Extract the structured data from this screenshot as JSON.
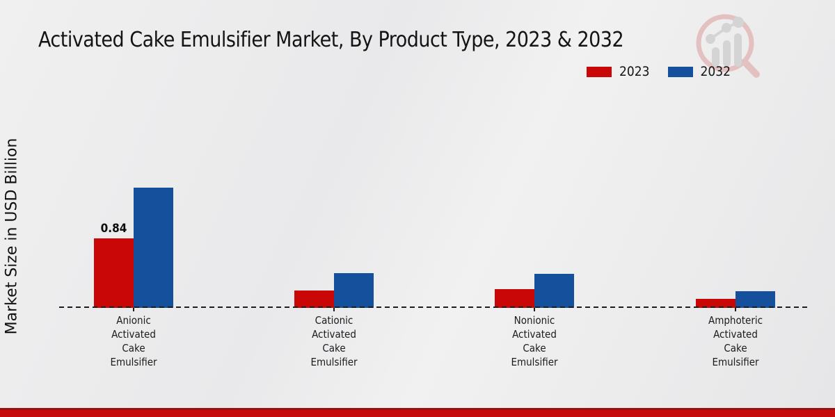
{
  "header": {
    "title": "Activated Cake Emulsifier Market, By Product Type, 2023 & 2032"
  },
  "y_axis": {
    "label": "Market Size in USD Billion"
  },
  "legend": {
    "items": [
      {
        "label": "2023",
        "color": "#c90707"
      },
      {
        "label": "2032",
        "color": "#15509c"
      }
    ]
  },
  "chart_data": {
    "type": "bar",
    "title": "Activated Cake Emulsifier Market, By Product Type, 2023 & 2032",
    "xlabel": "",
    "ylabel": "Market Size in USD Billion",
    "categories": [
      "Anionic\nActivated\nCake\nEmulsifier",
      "Cationic\nActivated\nCake\nEmulsifier",
      "Nonionic\nActivated\nCake\nEmulsifier",
      "Amphoteric\nActivated\nCake\nEmulsifier"
    ],
    "series": [
      {
        "name": "2023",
        "color": "#c90707",
        "values": [
          0.84,
          0.21,
          0.23,
          0.11
        ]
      },
      {
        "name": "2032",
        "color": "#15509c",
        "values": [
          1.45,
          0.42,
          0.41,
          0.2
        ]
      }
    ],
    "annotations": [
      {
        "series": "2023",
        "category_index": 0,
        "text": "0.84"
      }
    ],
    "ylim": [
      0,
      1.6
    ],
    "gridlines": false,
    "y_axis_ticks_visible": false,
    "baseline": "dashed-zero-line",
    "legend_position": "top-right"
  },
  "footer": {
    "band_color": "#c50b0b"
  }
}
